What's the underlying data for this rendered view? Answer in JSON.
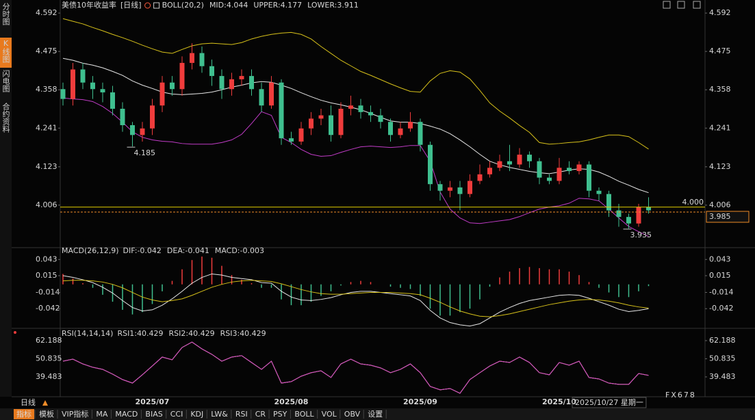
{
  "sidebar": [
    "分时图",
    "K线图",
    "闪电图",
    "合约资料"
  ],
  "footer": {
    "period": "日线",
    "date": "2025/10/27 星期一",
    "watermark": "FX678",
    "toolbar": [
      "指标",
      "模板",
      "VIP指标",
      "MA",
      "MACD",
      "BIAS",
      "CCI",
      "KDJ",
      "LW&",
      "RSI",
      "CR",
      "PSY",
      "BOLL",
      "VOL",
      "OBV",
      "设置"
    ]
  },
  "chart_data": [
    {
      "type": "candlestick",
      "title": "美债10年收益率",
      "subtitle": "[日线]",
      "indicator": "BOLL(20,2)",
      "up_color": "#f03c3c",
      "down_color": "#3fbf8f",
      "categories": [
        null,
        null,
        null,
        null,
        null,
        null,
        null,
        null,
        null,
        "2025/07",
        null,
        null,
        null,
        null,
        null,
        null,
        null,
        null,
        null,
        null,
        null,
        null,
        null,
        "2025/08",
        null,
        null,
        null,
        null,
        null,
        null,
        null,
        null,
        null,
        null,
        null,
        null,
        "2025/09",
        null,
        null,
        null,
        null,
        null,
        null,
        null,
        null,
        null,
        null,
        null,
        null,
        null,
        "2025/10",
        null,
        null,
        null,
        null,
        null,
        null,
        null,
        null,
        null
      ],
      "open": [
        4.36,
        4.33,
        4.42,
        4.38,
        4.36,
        4.35,
        4.3,
        4.25,
        4.22,
        4.24,
        4.31,
        4.38,
        4.36,
        4.44,
        4.47,
        4.43,
        4.4,
        4.36,
        4.39,
        4.4,
        4.36,
        4.31,
        4.38,
        4.21,
        4.2,
        4.24,
        4.27,
        4.28,
        4.22,
        4.3,
        4.31,
        4.29,
        4.28,
        4.26,
        4.22,
        4.24,
        4.26,
        4.19,
        4.07,
        4.05,
        4.06,
        4.04,
        4.08,
        4.1,
        4.12,
        4.14,
        4.13,
        4.16,
        4.14,
        4.09,
        4.08,
        4.12,
        4.11,
        4.13,
        4.05,
        4.04,
        3.99,
        3.97,
        3.95,
        4.0
      ],
      "high": [
        4.38,
        4.44,
        4.44,
        4.4,
        4.38,
        4.37,
        4.32,
        4.26,
        4.26,
        4.33,
        4.4,
        4.4,
        4.46,
        4.5,
        4.49,
        4.45,
        4.42,
        4.41,
        4.42,
        4.42,
        4.38,
        4.4,
        4.39,
        4.23,
        4.26,
        4.29,
        4.3,
        4.31,
        4.32,
        4.34,
        4.33,
        4.31,
        4.3,
        4.27,
        4.26,
        4.29,
        4.27,
        4.2,
        4.08,
        4.08,
        4.08,
        4.1,
        4.13,
        4.14,
        4.16,
        4.19,
        4.18,
        4.17,
        4.15,
        4.1,
        4.15,
        4.14,
        4.14,
        4.14,
        4.06,
        4.05,
        4.01,
        3.98,
        4.01,
        4.03
      ],
      "low": [
        4.31,
        4.31,
        4.36,
        4.33,
        4.32,
        4.28,
        4.23,
        4.185,
        4.2,
        4.22,
        4.29,
        4.34,
        4.34,
        4.42,
        4.41,
        4.37,
        4.33,
        4.34,
        4.37,
        4.34,
        4.29,
        4.3,
        4.19,
        4.19,
        4.19,
        4.22,
        4.25,
        4.2,
        4.21,
        4.28,
        4.27,
        4.26,
        4.24,
        4.2,
        4.21,
        4.23,
        4.17,
        4.05,
        4.02,
        4.03,
        3.99,
        4.03,
        4.07,
        4.09,
        4.11,
        4.11,
        4.12,
        4.12,
        4.07,
        4.07,
        4.07,
        4.1,
        4.1,
        4.03,
        4.02,
        3.97,
        3.94,
        3.935,
        3.94,
        3.98
      ],
      "close": [
        4.33,
        4.42,
        4.38,
        4.36,
        4.35,
        4.3,
        4.25,
        4.22,
        4.24,
        4.31,
        4.38,
        4.36,
        4.44,
        4.47,
        4.43,
        4.4,
        4.36,
        4.39,
        4.4,
        4.36,
        4.31,
        4.38,
        4.21,
        4.2,
        4.24,
        4.27,
        4.28,
        4.22,
        4.3,
        4.31,
        4.29,
        4.28,
        4.26,
        4.22,
        4.24,
        4.26,
        4.19,
        4.07,
        4.05,
        4.06,
        4.04,
        4.08,
        4.1,
        4.12,
        4.14,
        4.13,
        4.16,
        4.14,
        4.09,
        4.08,
        4.12,
        4.11,
        4.13,
        4.05,
        4.04,
        3.99,
        3.97,
        3.95,
        4.0,
        3.99
      ],
      "series": [
        {
          "name": "MID:4.044",
          "color": "#e8e8e8",
          "values": [
            4.454,
            4.448,
            4.439,
            4.433,
            4.425,
            4.414,
            4.402,
            4.385,
            4.372,
            4.362,
            4.351,
            4.345,
            4.343,
            4.345,
            4.347,
            4.351,
            4.358,
            4.366,
            4.372,
            4.379,
            4.383,
            4.381,
            4.372,
            4.362,
            4.349,
            4.337,
            4.326,
            4.318,
            4.312,
            4.305,
            4.297,
            4.286,
            4.274,
            4.263,
            4.259,
            4.259,
            4.255,
            4.247,
            4.238,
            4.224,
            4.205,
            4.184,
            4.161,
            4.14,
            4.129,
            4.121,
            4.115,
            4.109,
            4.105,
            4.102,
            4.107,
            4.113,
            4.117,
            4.115,
            4.107,
            4.094,
            4.079,
            4.067,
            4.054,
            4.044
          ]
        },
        {
          "name": "UPPER:4.177",
          "color": "#d8c21a",
          "values": [
            4.575,
            4.567,
            4.559,
            4.548,
            4.538,
            4.527,
            4.517,
            4.506,
            4.494,
            4.483,
            4.473,
            4.469,
            4.481,
            4.492,
            4.498,
            4.5,
            4.498,
            4.496,
            4.502,
            4.513,
            4.521,
            4.527,
            4.531,
            4.533,
            4.527,
            4.513,
            4.49,
            4.469,
            4.448,
            4.431,
            4.414,
            4.402,
            4.389,
            4.376,
            4.364,
            4.353,
            4.351,
            4.385,
            4.408,
            4.416,
            4.412,
            4.391,
            4.356,
            4.318,
            4.293,
            4.272,
            4.249,
            4.228,
            4.197,
            4.192,
            4.194,
            4.197,
            4.199,
            4.205,
            4.213,
            4.22,
            4.22,
            4.215,
            4.197,
            4.177
          ]
        },
        {
          "name": "LOWER:3.911",
          "color": "#c23cc8",
          "values": [
            4.333,
            4.33,
            4.328,
            4.322,
            4.307,
            4.286,
            4.259,
            4.23,
            4.213,
            4.205,
            4.201,
            4.199,
            4.194,
            4.192,
            4.192,
            4.192,
            4.197,
            4.205,
            4.222,
            4.255,
            4.291,
            4.28,
            4.213,
            4.197,
            4.176,
            4.161,
            4.155,
            4.157,
            4.167,
            4.176,
            4.184,
            4.186,
            4.184,
            4.182,
            4.184,
            4.188,
            4.188,
            4.14,
            4.046,
            3.994,
            3.967,
            3.952,
            3.95,
            3.954,
            3.958,
            3.962,
            3.971,
            3.983,
            3.994,
            4.0,
            4.004,
            4.012,
            4.027,
            4.025,
            4.019,
            3.994,
            3.967,
            3.941,
            3.925,
            3.911
          ]
        }
      ],
      "ylim": [
        3.891,
        4.611
      ],
      "yticks": [
        {
          "value": 4.592,
          "label": "4.592"
        },
        {
          "value": 4.475,
          "label": "4.475"
        },
        {
          "value": 4.358,
          "label": "4.358"
        },
        {
          "value": 4.241,
          "label": "4.241"
        },
        {
          "value": 4.123,
          "label": "4.123"
        },
        {
          "value": 4.006,
          "label": "4.006"
        }
      ],
      "reference_line": {
        "value": 4,
        "label": "4.000",
        "color": "#e6d200"
      },
      "last_price": {
        "value": 3.985,
        "color": "#f08c28"
      },
      "low_label_color": "#5fc8a0"
    },
    {
      "type": "macd",
      "title": "MACD(26,12,9)",
      "up_color": "#f03c3c",
      "down_color": "#3fbf8f",
      "series": [
        {
          "name": "DIF:-0.042",
          "color": "#e8e8e8",
          "values": [
            0.015,
            0.012,
            0.008,
            0.003,
            -0.005,
            -0.015,
            -0.028,
            -0.04,
            -0.046,
            -0.044,
            -0.036,
            -0.025,
            -0.012,
            0.002,
            0.012,
            0.018,
            0.016,
            0.012,
            0.01,
            0.008,
            0.003,
            0.002,
            -0.012,
            -0.022,
            -0.027,
            -0.028,
            -0.026,
            -0.023,
            -0.018,
            -0.014,
            -0.012,
            -0.012,
            -0.014,
            -0.016,
            -0.018,
            -0.02,
            -0.028,
            -0.045,
            -0.058,
            -0.066,
            -0.07,
            -0.072,
            -0.068,
            -0.058,
            -0.048,
            -0.04,
            -0.033,
            -0.028,
            -0.025,
            -0.022,
            -0.019,
            -0.018,
            -0.019,
            -0.024,
            -0.03,
            -0.036,
            -0.043,
            -0.047,
            -0.045,
            -0.042
          ]
        },
        {
          "name": "DEA:-0.041",
          "color": "#d8c21a",
          "values": [
            0.006,
            0.007,
            0.007,
            0.006,
            0.004,
            0.0,
            -0.006,
            -0.014,
            -0.022,
            -0.027,
            -0.03,
            -0.028,
            -0.025,
            -0.019,
            -0.012,
            -0.005,
            0.0,
            0.004,
            0.006,
            0.007,
            0.006,
            0.005,
            0.001,
            -0.004,
            -0.009,
            -0.013,
            -0.016,
            -0.017,
            -0.017,
            -0.016,
            -0.015,
            -0.014,
            -0.014,
            -0.014,
            -0.015,
            -0.016,
            -0.018,
            -0.024,
            -0.031,
            -0.039,
            -0.046,
            -0.051,
            -0.055,
            -0.056,
            -0.054,
            -0.051,
            -0.047,
            -0.043,
            -0.039,
            -0.035,
            -0.032,
            -0.029,
            -0.027,
            -0.026,
            -0.027,
            -0.029,
            -0.032,
            -0.036,
            -0.039,
            -0.041
          ]
        },
        {
          "name": "MACD:-0.003",
          "color": "#d040d0",
          "kind": "bar",
          "values": [
            0.018,
            0.01,
            0.002,
            -0.006,
            -0.018,
            -0.03,
            -0.044,
            -0.052,
            -0.048,
            -0.034,
            -0.012,
            0.006,
            0.026,
            0.042,
            0.048,
            0.046,
            0.032,
            0.016,
            0.008,
            0.002,
            -0.006,
            -0.006,
            -0.026,
            -0.036,
            -0.036,
            -0.03,
            -0.02,
            -0.012,
            -0.002,
            0.004,
            0.006,
            0.004,
            0.0,
            -0.004,
            -0.006,
            -0.008,
            -0.02,
            -0.042,
            -0.054,
            -0.054,
            -0.048,
            -0.042,
            -0.026,
            -0.004,
            0.012,
            0.022,
            0.028,
            0.03,
            0.028,
            0.026,
            0.026,
            0.022,
            0.016,
            0.004,
            -0.006,
            -0.014,
            -0.022,
            -0.022,
            -0.012,
            -0.003
          ]
        }
      ],
      "ylim": [
        -0.076,
        0.054
      ],
      "yticks": [
        {
          "value": 0.043,
          "label": "0.043"
        },
        {
          "value": 0.015,
          "label": "0.015"
        },
        {
          "value": -0.014,
          "label": "-0.014"
        },
        {
          "value": -0.042,
          "label": "-0.042"
        }
      ]
    },
    {
      "type": "line",
      "title": "RSI(14,14,14)",
      "series": [
        {
          "name": "RSI1:40.429",
          "color": "#e8e8e8",
          "values": [
            49.3,
            50.6,
            47.6,
            45.5,
            44.2,
            41.2,
            37.8,
            35.6,
            40.8,
            46.3,
            51.9,
            50.2,
            57.9,
            61.3,
            57.0,
            53.6,
            49.3,
            51.9,
            52.8,
            48.5,
            44.2,
            49.3,
            35.6,
            36.5,
            39.9,
            42.1,
            43.3,
            39.1,
            47.6,
            50.6,
            47.6,
            46.8,
            45.1,
            42.1,
            44.2,
            47.6,
            42.1,
            33.5,
            31.4,
            32.2,
            29.2,
            37.8,
            42.1,
            46.3,
            49.3,
            48.5,
            51.9,
            48.5,
            42.1,
            40.8,
            48.5,
            46.8,
            49.3,
            39.1,
            38.2,
            35.6,
            34.8,
            34.8,
            41.6,
            40.429
          ]
        },
        {
          "name": "RSI2:40.429",
          "color": "#d8c21a",
          "values": [
            49.3,
            50.6,
            47.6,
            45.5,
            44.2,
            41.2,
            37.8,
            35.6,
            40.8,
            46.3,
            51.9,
            50.2,
            57.9,
            61.3,
            57.0,
            53.6,
            49.3,
            51.9,
            52.8,
            48.5,
            44.2,
            49.3,
            35.6,
            36.5,
            39.9,
            42.1,
            43.3,
            39.1,
            47.6,
            50.6,
            47.6,
            46.8,
            45.1,
            42.1,
            44.2,
            47.6,
            42.1,
            33.5,
            31.4,
            32.2,
            29.2,
            37.8,
            42.1,
            46.3,
            49.3,
            48.5,
            51.9,
            48.5,
            42.1,
            40.8,
            48.5,
            46.8,
            49.3,
            39.1,
            38.2,
            35.6,
            34.8,
            34.8,
            41.6,
            40.429
          ]
        },
        {
          "name": "RSI3:40.429",
          "color": "#d040d0",
          "values": [
            49.3,
            50.6,
            47.6,
            45.5,
            44.2,
            41.2,
            37.8,
            35.6,
            40.8,
            46.3,
            51.9,
            50.2,
            57.9,
            61.3,
            57.0,
            53.6,
            49.3,
            51.9,
            52.8,
            48.5,
            44.2,
            49.3,
            35.6,
            36.5,
            39.9,
            42.1,
            43.3,
            39.1,
            47.6,
            50.6,
            47.6,
            46.8,
            45.1,
            42.1,
            44.2,
            47.6,
            42.1,
            33.5,
            31.4,
            32.2,
            29.2,
            37.8,
            42.1,
            46.3,
            49.3,
            48.5,
            51.9,
            48.5,
            42.1,
            40.8,
            48.5,
            46.8,
            49.3,
            39.1,
            38.2,
            35.6,
            34.8,
            34.8,
            41.6,
            40.429
          ]
        }
      ],
      "ylim": [
        27.9,
        65.6
      ],
      "yticks": [
        {
          "value": 62.188,
          "label": "62.188"
        },
        {
          "value": 50.835,
          "label": "50.835"
        },
        {
          "value": 39.483,
          "label": "39.483"
        }
      ]
    }
  ]
}
